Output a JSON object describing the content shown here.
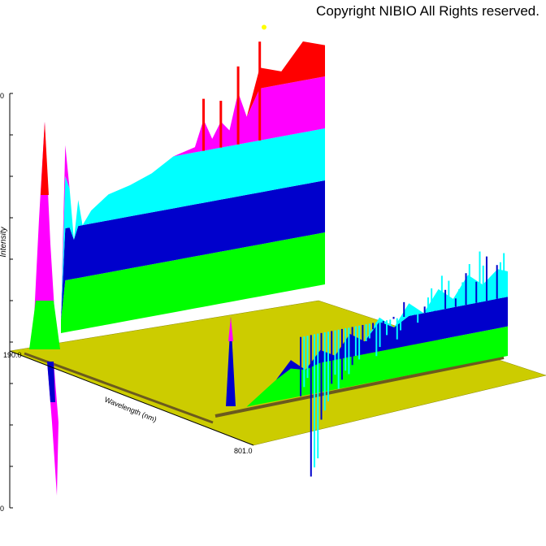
{
  "copyright": "Copyright NIBIO All Rights reserved.",
  "chart_data": {
    "type": "area",
    "subtype": "3d-waterfall",
    "title": "",
    "xlabel": "Wavelength (nm)",
    "ylabel": "Intensity",
    "x_tick_labels": [
      "190.0",
      "801.0"
    ],
    "y_tick_labels": [
      "0",
      "0"
    ],
    "xlim": [
      190.0,
      801.0
    ],
    "colors": {
      "floor": "#cccc00",
      "band_1": "#00ff00",
      "band_2": "#0000cc",
      "band_3": "#00ffff",
      "band_4": "#ff00ff",
      "band_5": "#ff0000",
      "peak": "#ffff00"
    },
    "series": [
      {
        "x": [
          190,
          200,
          210,
          220,
          230,
          240,
          260,
          300,
          350,
          400,
          450,
          500,
          520,
          540,
          560,
          580,
          600,
          620,
          650,
          700,
          750,
          801
        ],
        "values": [
          0.05,
          0.72,
          0.55,
          0.35,
          0.5,
          0.4,
          0.45,
          0.5,
          0.52,
          0.55,
          0.6,
          0.62,
          0.72,
          0.64,
          0.7,
          0.66,
          0.8,
          0.7,
          0.88,
          0.85,
          0.95,
          0.92
        ]
      },
      {
        "x": [
          190,
          210,
          230,
          250,
          270,
          300,
          330,
          360,
          390,
          420,
          450,
          480,
          510,
          540,
          570,
          600,
          630,
          660,
          690,
          720,
          750,
          780,
          801
        ],
        "values": [
          0.0,
          -0.4,
          -0.15,
          0.0,
          0.0,
          0.05,
          0.1,
          0.18,
          0.12,
          0.2,
          0.16,
          0.25,
          0.2,
          0.3,
          0.24,
          0.34,
          0.28,
          0.38,
          0.32,
          0.42,
          0.36,
          0.44,
          0.4
        ]
      }
    ],
    "grid": false,
    "legend": "none"
  }
}
